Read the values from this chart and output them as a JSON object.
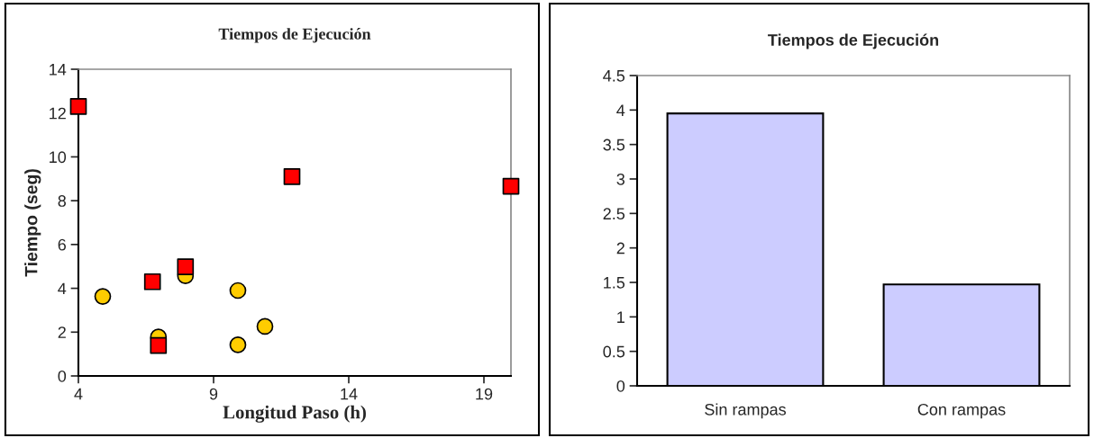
{
  "chart_data": [
    {
      "type": "scatter",
      "title": "Tiempos de Ejecución",
      "xlabel": "Longitud Paso (h)",
      "ylabel": "Tiempo (seg)",
      "xlim": [
        4,
        20
      ],
      "xticks": [
        4,
        9,
        14,
        19
      ],
      "ylim": [
        0,
        14
      ],
      "yticks": [
        0,
        2,
        4,
        6,
        8,
        10,
        12,
        14
      ],
      "series": [
        {
          "color": "#ffcc00",
          "marker": "circle",
          "x": [
            4.9,
            7.96,
            9.9,
            6.96,
            9.9,
            10.9
          ],
          "values": [
            3.63,
            4.57,
            3.9,
            1.78,
            1.42,
            2.26
          ]
        },
        {
          "color": "#ff0000",
          "marker": "square",
          "x": [
            4,
            11.9,
            20,
            6.74,
            7.96,
            6.96
          ],
          "values": [
            12.3,
            9.1,
            8.66,
            4.3,
            4.98,
            1.39
          ]
        }
      ]
    },
    {
      "type": "bar",
      "title": "Tiempos de Ejecución",
      "categories": [
        "Sin rampas",
        "Con rampas"
      ],
      "values": [
        3.95,
        1.47
      ],
      "color": "#ccccff",
      "ylim": [
        0,
        4.5
      ],
      "yticks": [
        0,
        0.5,
        1,
        1.5,
        2,
        2.5,
        3,
        3.5,
        4,
        4.5
      ]
    }
  ]
}
